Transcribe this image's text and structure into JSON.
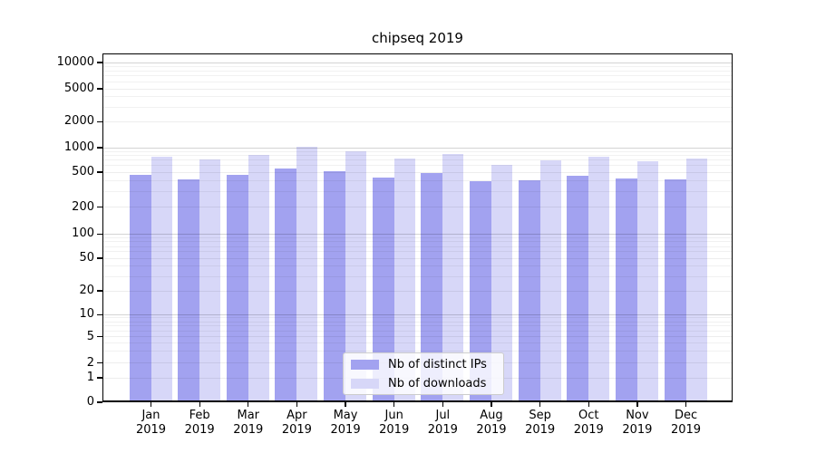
{
  "figure": {
    "title": "chipseq 2019"
  },
  "chart_data": {
    "type": "bar",
    "title": "chipseq 2019",
    "scale": "symlog",
    "grid": true,
    "legend_position": "bottom-center-inside",
    "categories": [
      "Jan",
      "Feb",
      "Mar",
      "Apr",
      "May",
      "Jun",
      "Jul",
      "Aug",
      "Sep",
      "Oct",
      "Nov",
      "Dec"
    ],
    "year": "2019",
    "yticks": [
      0,
      1,
      2,
      5,
      10,
      20,
      50,
      100,
      200,
      500,
      1000,
      2000,
      5000,
      10000
    ],
    "ylim": [
      0,
      14000
    ],
    "series": [
      {
        "name": "Nb of distinct IPs",
        "color": "#a2a2f0",
        "values": [
          470,
          415,
          465,
          560,
          510,
          435,
          490,
          395,
          405,
          455,
          425,
          415
        ]
      },
      {
        "name": "Nb of downloads",
        "color": "#d7d7f8",
        "values": [
          780,
          720,
          810,
          1030,
          910,
          740,
          840,
          620,
          700,
          780,
          685,
          740
        ]
      }
    ],
    "colors": {
      "grid_decade": "#d4d4d4",
      "grid_minor": "#ececec",
      "spine": "#000000",
      "background": "#ffffff"
    }
  }
}
